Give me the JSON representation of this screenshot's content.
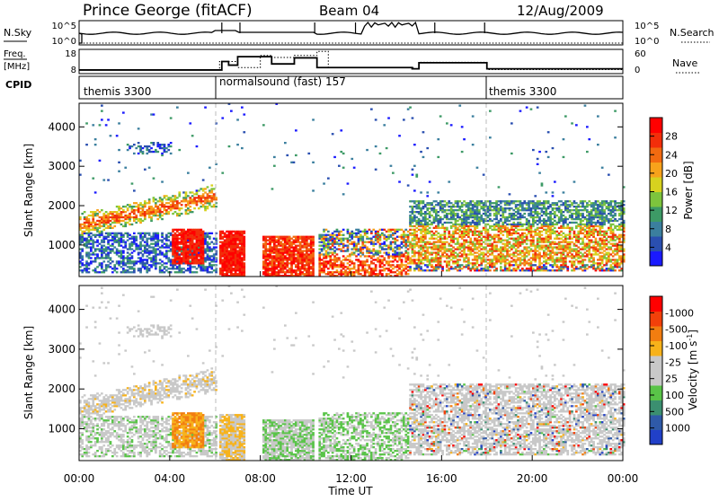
{
  "header": {
    "station": "Prince George (fitACF)",
    "beam": "Beam 04",
    "date": "12/Aug/2009"
  },
  "panels": {
    "nsky": {
      "label": "N.Sky",
      "left_ticks": [
        "10^5",
        "10^0"
      ],
      "right_label": "N.Search",
      "right_ticks": [
        "10^5",
        "10^0"
      ]
    },
    "freq": {
      "label_line1": "Freq.",
      "label_line2": "[MHz]",
      "left_ticks": [
        "18",
        "8"
      ],
      "right_label": "Nave",
      "right_ticks": [
        "60",
        "0"
      ]
    },
    "cpid": {
      "label": "CPID",
      "segments": [
        "themis 3300",
        "normalsound (fast) 157",
        "themis 3300"
      ]
    }
  },
  "axes": {
    "xlabel": "Time UT",
    "xticks": [
      "00:00",
      "04:00",
      "08:00",
      "12:00",
      "16:00",
      "20:00",
      "00:00"
    ],
    "ylabel": "Slant Range [km]",
    "yticks": [
      "1000",
      "2000",
      "3000",
      "4000"
    ]
  },
  "colorbars": {
    "power": {
      "label": "Power [dB]",
      "ticks": [
        "4",
        "8",
        "12",
        "16",
        "20",
        "24",
        "28"
      ],
      "colors": [
        "#1a1aff",
        "#2a4fb0",
        "#3b7f9e",
        "#3d9a66",
        "#7dc43d",
        "#d7d21f",
        "#f7a21b",
        "#f26a10",
        "#f22e0a",
        "#ff0000"
      ]
    },
    "velocity": {
      "label": "Velocity [m s^-1]",
      "ticks": [
        "1000",
        "500",
        "100",
        "25",
        "-25",
        "-100",
        "-500",
        "-1000"
      ],
      "colors": [
        "#2140c8",
        "#2f5aa8",
        "#3b8f70",
        "#59c448",
        "#c8c8c8",
        "#c8c8c8",
        "#f7b21a",
        "#f27d10",
        "#f2400a",
        "#ff0000"
      ]
    }
  },
  "chart_data": {
    "type": "heatmap",
    "title": "Prince George (fitACF)",
    "xlabel": "Time UT",
    "ylabel": "Slant Range [km]",
    "x_range_hours": [
      0,
      24
    ],
    "y_range_km": [
      200,
      4600
    ],
    "colorbar_power_range_dB": [
      0,
      30
    ],
    "colorbar_velocity_range": [
      -1000,
      1000
    ],
    "cpid_transitions_hours": [
      6,
      18
    ],
    "freq_mhz": {
      "x": [
        0,
        6,
        6.3,
        6.6,
        7,
        8,
        8.5,
        9.5,
        10.5,
        14.7,
        15,
        18,
        24
      ],
      "y": [
        9.5,
        9.5,
        13,
        11.5,
        15,
        15,
        12,
        14.5,
        10.5,
        10,
        12.5,
        10,
        10
      ]
    },
    "nave": {
      "x": [
        0,
        6,
        6.2,
        7,
        8,
        8.5,
        9.5,
        10.5,
        11,
        14.8,
        15,
        18,
        24
      ],
      "y": [
        10,
        10,
        30,
        15,
        45,
        40,
        45,
        55,
        15,
        12,
        28,
        10,
        10
      ]
    }
  }
}
